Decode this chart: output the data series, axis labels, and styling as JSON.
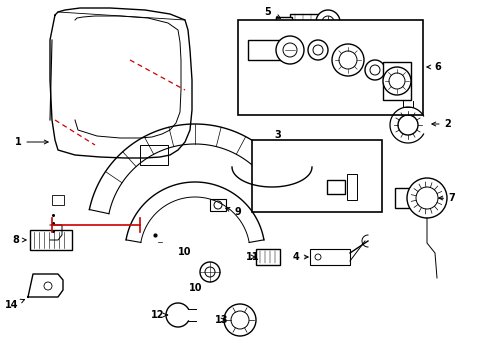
{
  "background_color": "#ffffff",
  "line_color": "#000000",
  "red_color": "#cc0000",
  "figsize": [
    4.89,
    3.6
  ],
  "dpi": 100
}
